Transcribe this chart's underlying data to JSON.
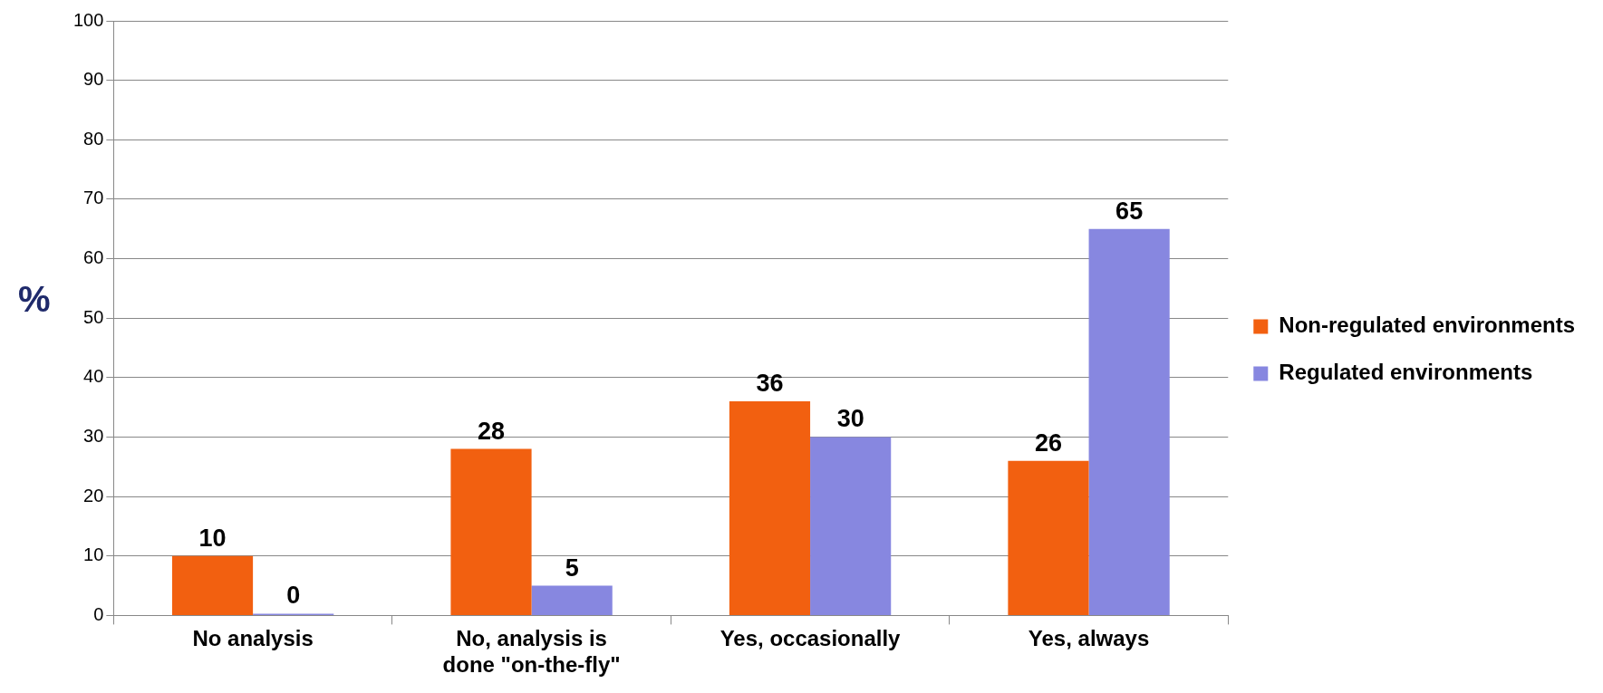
{
  "chart_data": {
    "type": "bar",
    "ylabel": "%",
    "categories": [
      "No analysis",
      "No, analysis is done \"on-the-fly\"",
      "Yes, occasionally",
      "Yes, always"
    ],
    "series": [
      {
        "name": "Non-regulated environments",
        "color": "#f26010",
        "values": [
          10,
          28,
          36,
          26
        ]
      },
      {
        "name": "Regulated environments",
        "color": "#8787e0",
        "values": [
          0,
          5,
          30,
          65
        ]
      }
    ],
    "ylim": [
      0,
      100
    ],
    "yticks": [
      0,
      10,
      20,
      30,
      40,
      50,
      60,
      70,
      80,
      90,
      100
    ],
    "grid": "y",
    "legend": "right",
    "data_labels": true
  }
}
